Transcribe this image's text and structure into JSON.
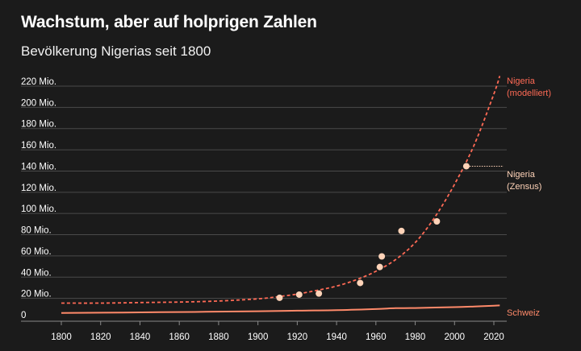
{
  "header": {
    "title": "Wachstum, aber auf holprigen Zahlen",
    "subtitle": "Bevölkerung Nigerias seit 1800"
  },
  "colors": {
    "background": "#1b1b1b",
    "nigeria_modelled": "#ff6a55",
    "nigeria_census": "#ffd3b8",
    "schweiz": "#ff8a6a",
    "grid": "#4a4a4a"
  },
  "chart_data": {
    "type": "line",
    "title": "Wachstum, aber auf holprigen Zahlen",
    "subtitle": "Bevölkerung Nigerias seit 1800",
    "xlim": [
      1800,
      2024
    ],
    "ylim": [
      0,
      225
    ],
    "x_ticks": [
      "1800",
      "1820",
      "1840",
      "1860",
      "1880",
      "1900",
      "1920",
      "1940",
      "1960",
      "1980",
      "2000",
      "2020"
    ],
    "y_ticks": [
      "0",
      "20 Mio.",
      "40 Mio.",
      "60 Mio.",
      "80 Mio.",
      "100 Mio.",
      "120 Mio.",
      "140 Mio.",
      "160 Mio.",
      "180 Mio.",
      "200 Mio.",
      "220 Mio."
    ],
    "grid": "horizontal",
    "series": [
      {
        "name": "Nigeria (modelliert)",
        "label_lines": [
          "Nigeria",
          "(modelliert)"
        ],
        "style": "dashed",
        "x": [
          1800,
          1820,
          1840,
          1860,
          1880,
          1900,
          1910,
          1920,
          1930,
          1940,
          1950,
          1960,
          1970,
          1980,
          1990,
          2000,
          2010,
          2020,
          2023
        ],
        "y": [
          11,
          11,
          11.5,
          12,
          13,
          15,
          17,
          19.5,
          23,
          27,
          33,
          41,
          52,
          68,
          92,
          123,
          160,
          208,
          225
        ]
      },
      {
        "name": "Nigeria (Zensus)",
        "label_lines": [
          "Nigeria",
          "(Zensus)"
        ],
        "style": "points",
        "x": [
          1911,
          1921,
          1931,
          1952,
          1962,
          1963,
          1973,
          1991,
          2006
        ],
        "y": [
          16,
          19,
          20,
          30,
          45,
          55,
          79,
          88,
          140
        ]
      },
      {
        "name": "Schweiz",
        "label_lines": [
          "Schweiz"
        ],
        "style": "solid",
        "x": [
          1800,
          1850,
          1900,
          1920,
          1940,
          1960,
          1970,
          1980,
          2000,
          2010,
          2020,
          2023
        ],
        "y": [
          1.7,
          2.4,
          3.3,
          3.9,
          4.3,
          5.4,
          6.2,
          6.4,
          7.2,
          7.8,
          8.6,
          8.8
        ]
      }
    ]
  }
}
